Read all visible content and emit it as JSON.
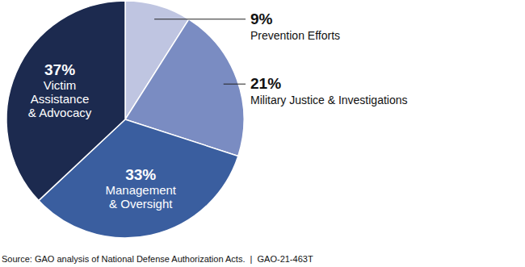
{
  "chart_data": {
    "type": "pie",
    "categories": [
      "Prevention Efforts",
      "Military Justice & Investigations",
      "Management & Oversight",
      "Victim Assistance & Advocacy"
    ],
    "values": [
      9,
      21,
      33,
      37
    ],
    "value_labels": [
      "9%",
      "21%",
      "33%",
      "37%"
    ],
    "colors": [
      "#bfc5e1",
      "#7a8cc2",
      "#3a5e9f",
      "#1c2a4f"
    ],
    "data_labels": true,
    "source": "Source: GAO analysis of National Defense Authorization Acts.  |  GAO-21-463T"
  }
}
